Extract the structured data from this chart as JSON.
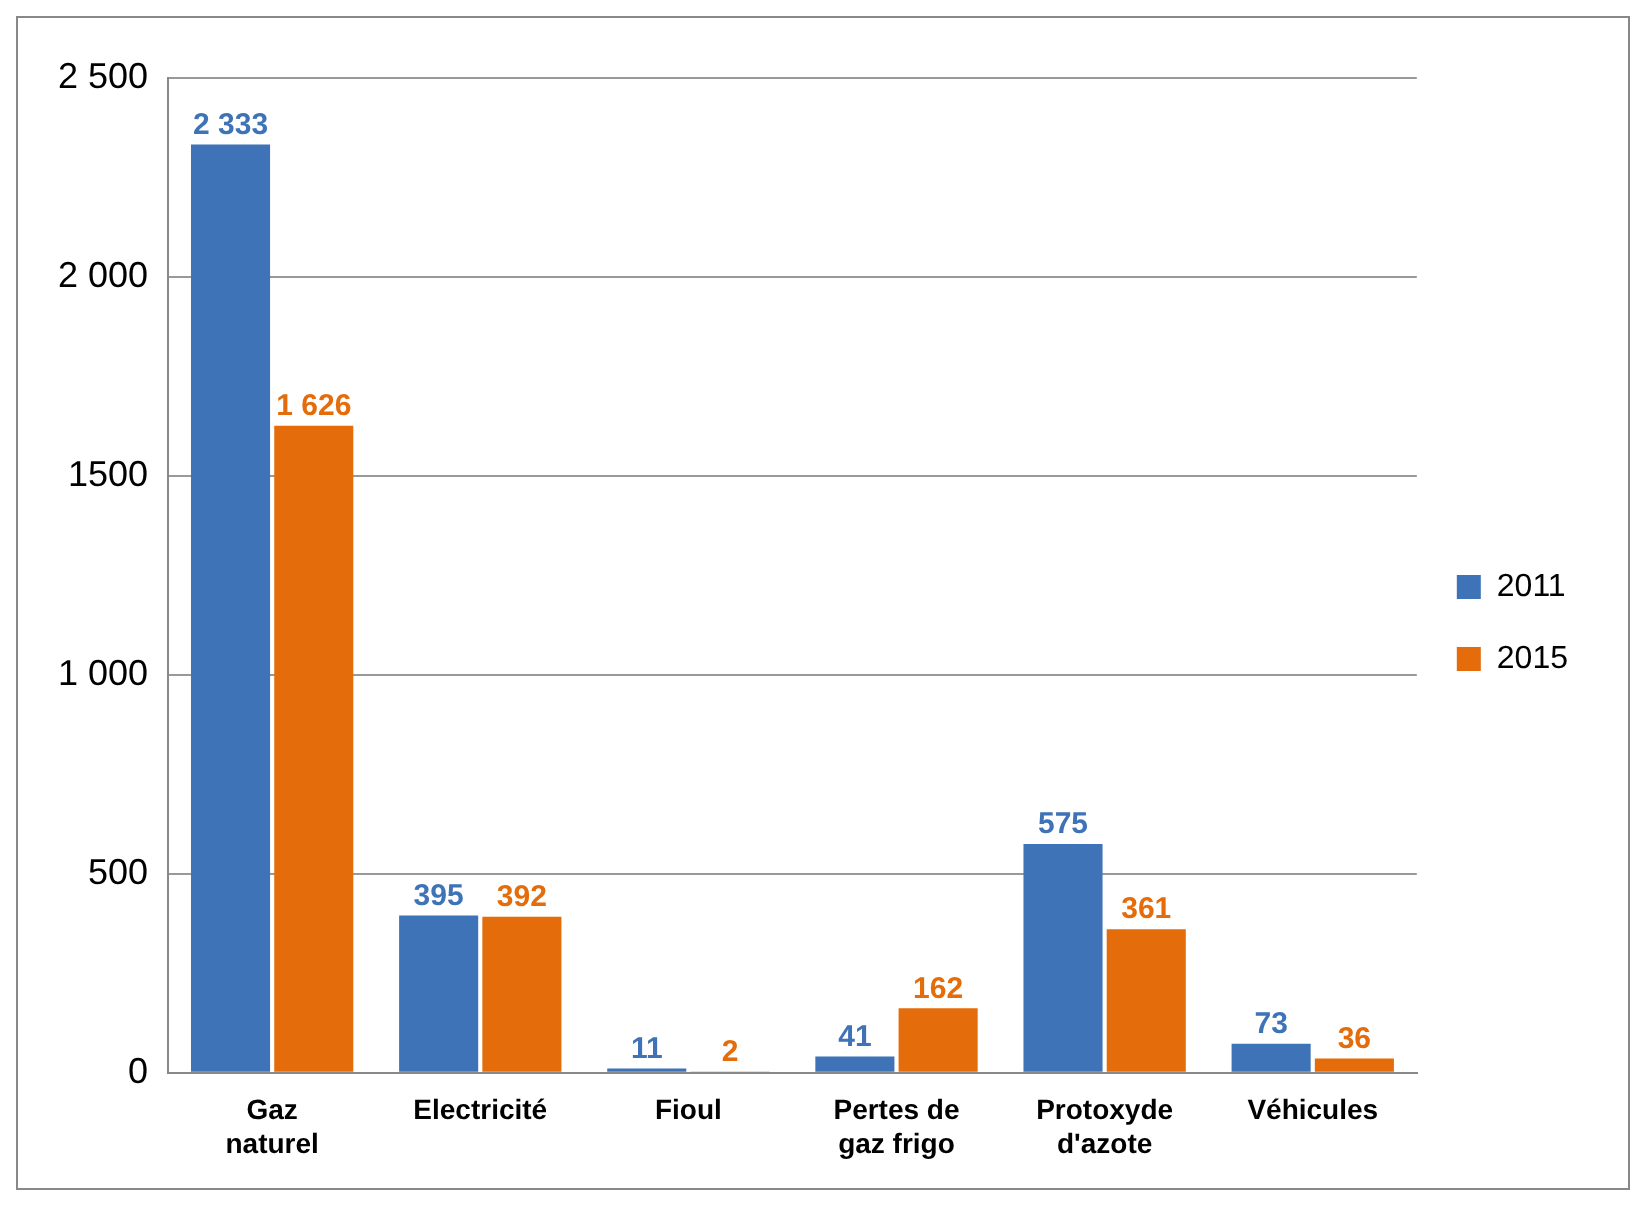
{
  "chart_data": {
    "type": "bar",
    "categories": [
      "Gaz naturel",
      "Electricité",
      "Fioul",
      "Pertes de gaz frigo",
      "Protoxyde d'azote",
      "Véhicules"
    ],
    "series": [
      {
        "name": "2011",
        "color": "#3f73b8",
        "values": [
          2333,
          395,
          11,
          41,
          575,
          73
        ],
        "value_labels": [
          "2 333",
          "395",
          "11",
          "41",
          "575",
          "73"
        ]
      },
      {
        "name": "2015",
        "color": "#e46c0a",
        "values": [
          1626,
          392,
          2,
          162,
          361,
          36
        ],
        "value_labels": [
          "1 626",
          "392",
          "2",
          "162",
          "361",
          "36"
        ]
      }
    ],
    "ylim": [
      0,
      2500
    ],
    "yticks": [
      {
        "value": 0,
        "label": "0"
      },
      {
        "value": 500,
        "label": "500"
      },
      {
        "value": 1000,
        "label": "1 000"
      },
      {
        "value": 1500,
        "label": "1500"
      },
      {
        "value": 2000,
        "label": "2 000"
      },
      {
        "value": 2500,
        "label": "2 500"
      }
    ],
    "grid": "y",
    "legend": "right"
  }
}
